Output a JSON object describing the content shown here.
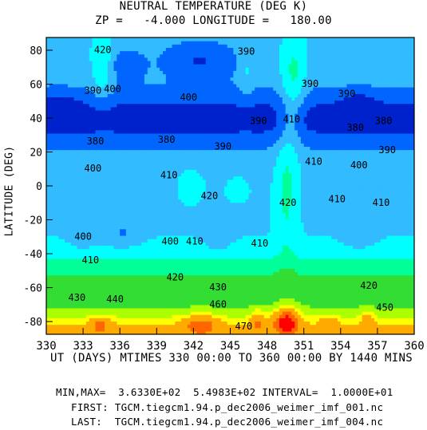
{
  "chart_data": {
    "type": "heatmap",
    "title": "NEUTRAL TEMPERATURE (DEG K)",
    "subtitle": "ZP =   -4.000 LONGITUDE =   180.00",
    "xlabel": "UT (DAYS) MTIMES 330 00:00 TO 360 00:00 BY 1440 MINS",
    "ylabel": "LATITUDE (DEG)",
    "xlim": [
      330,
      360
    ],
    "ylim": [
      -87.5,
      87.5
    ],
    "x_ticks": [
      "330",
      "333",
      "336",
      "339",
      "342",
      "345",
      "348",
      "351",
      "354",
      "357",
      "360"
    ],
    "y_ticks": [
      "80",
      "60",
      "40",
      "20",
      "0",
      "-20",
      "-40",
      "-60",
      "-80"
    ],
    "colorscale": [
      "#ff00ff",
      "#ff0000",
      "#ff6600",
      "#ffaa00",
      "#ffff00",
      "#aaff00",
      "#33dd33",
      "#00ff99",
      "#00ffff",
      "#33bbff",
      "#0066ff",
      "#0022cc"
    ],
    "contour_labels": [
      {
        "text": "420",
        "x": 334.6,
        "y": 80
      },
      {
        "text": "390",
        "x": 333.8,
        "y": 56
      },
      {
        "text": "400",
        "x": 335.4,
        "y": 57
      },
      {
        "text": "390",
        "x": 346.3,
        "y": 79
      },
      {
        "text": "400",
        "x": 341.6,
        "y": 52
      },
      {
        "text": "390",
        "x": 347.3,
        "y": 38
      },
      {
        "text": "410",
        "x": 350.0,
        "y": 39
      },
      {
        "text": "390",
        "x": 351.5,
        "y": 60
      },
      {
        "text": "390",
        "x": 354.5,
        "y": 54
      },
      {
        "text": "380",
        "x": 355.2,
        "y": 34
      },
      {
        "text": "380",
        "x": 357.5,
        "y": 38
      },
      {
        "text": "380",
        "x": 334.0,
        "y": 26
      },
      {
        "text": "380",
        "x": 339.8,
        "y": 27
      },
      {
        "text": "390",
        "x": 344.4,
        "y": 23
      },
      {
        "text": "390",
        "x": 357.8,
        "y": 21
      },
      {
        "text": "400",
        "x": 333.8,
        "y": 10
      },
      {
        "text": "410",
        "x": 340.0,
        "y": 6
      },
      {
        "text": "400",
        "x": 355.5,
        "y": 12
      },
      {
        "text": "410",
        "x": 351.8,
        "y": 14
      },
      {
        "text": "420",
        "x": 343.3,
        "y": -6
      },
      {
        "text": "420",
        "x": 349.7,
        "y": -10
      },
      {
        "text": "410",
        "x": 353.7,
        "y": -8
      },
      {
        "text": "410",
        "x": 357.3,
        "y": -10
      },
      {
        "text": "400",
        "x": 333.0,
        "y": -30
      },
      {
        "text": "400",
        "x": 340.1,
        "y": -33
      },
      {
        "text": "410",
        "x": 342.1,
        "y": -33
      },
      {
        "text": "410",
        "x": 347.4,
        "y": -34
      },
      {
        "text": "410",
        "x": 333.6,
        "y": -44
      },
      {
        "text": "420",
        "x": 340.5,
        "y": -54
      },
      {
        "text": "430",
        "x": 344.0,
        "y": -60
      },
      {
        "text": "420",
        "x": 356.3,
        "y": -59
      },
      {
        "text": "430",
        "x": 332.5,
        "y": -66
      },
      {
        "text": "440",
        "x": 335.6,
        "y": -67
      },
      {
        "text": "460",
        "x": 344.0,
        "y": -70
      },
      {
        "text": "450",
        "x": 357.6,
        "y": -72
      },
      {
        "text": "470",
        "x": 346.1,
        "y": -83
      }
    ]
  },
  "footer": {
    "minmax": "MIN,MAX=  3.6330E+02  5.4983E+02 INTERVAL=  1.0000E+01",
    "first": "FIRST: TGCM.tiegcm1.94.p_dec2006_weimer_imf_001.nc",
    "last": "LAST:  TGCM.tiegcm1.94.p_dec2006_weimer_imf_004.nc"
  }
}
